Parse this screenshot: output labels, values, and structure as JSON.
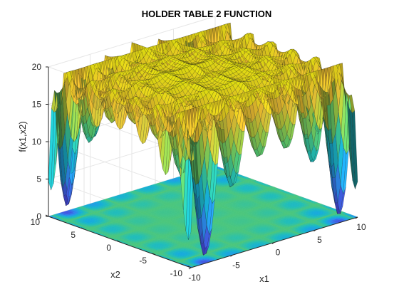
{
  "chart_data": {
    "type": "surface",
    "title": "HOLDER TABLE 2 FUNCTION",
    "xlabel": "x1",
    "ylabel": "x2",
    "zlabel": "f(x1,x2)",
    "xlim": [
      -10,
      10
    ],
    "ylim": [
      -10,
      10
    ],
    "zlim": [
      0,
      20
    ],
    "x_ticks": [
      "-10",
      "-5",
      "0",
      "5",
      "10"
    ],
    "y_ticks": [
      "-10",
      "-5",
      "0",
      "5",
      "10"
    ],
    "z_ticks": [
      "0",
      "5",
      "10",
      "15",
      "20"
    ],
    "function": "f(x1,x2) = -|sin(x1) cos(x2) exp(|1 - sqrt(x1^2 + x2^2)/pi|)|, shown offset so the surface spans roughly 0 to 20",
    "grid": true,
    "contour_projection": "filled contour at z = 0",
    "colormap": "parula",
    "colors": {
      "low": "#3e26a8",
      "mid": "#23bfb5",
      "high": "#f9fb0e",
      "mesh": "#1a1a1a",
      "axes": "#262626",
      "grid": "#e6e6e6"
    }
  }
}
